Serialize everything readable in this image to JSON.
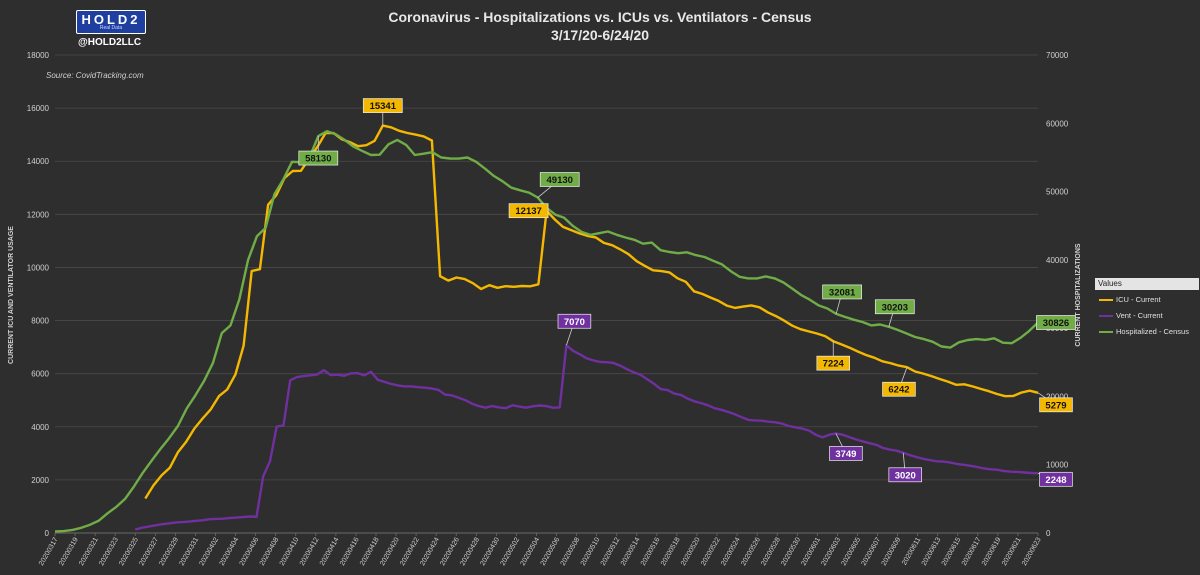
{
  "header": {
    "logo_text": "HOLD2",
    "logo_sub": "Real Data",
    "handle": "@HOLD2LLC",
    "title_line1": "Coronavirus - Hospitalizations vs. ICUs vs. Ventilators - Census",
    "title_line2": "3/17/20-6/24/20",
    "source": "Source: CovidTracking.com"
  },
  "legend": {
    "heading": "Values",
    "items": [
      "ICU - Current",
      "Vent - Current",
      "Hospitalized - Census"
    ]
  },
  "colors": {
    "icu": "#f5b800",
    "vent": "#7030a0",
    "hosp": "#70ad47",
    "background": "#2e2e2e",
    "grid": "#4a4a4a",
    "text": "#d0d0d0"
  },
  "chart_data": {
    "type": "line",
    "title": "Coronavirus - Hospitalizations vs. ICUs vs. Ventilators - Census",
    "subtitle": "3/17/20-6/24/20",
    "ylabel_left": "CURRENT ICU AND VENTILATOR USAGE",
    "ylabel_right": "CURRENT HOSPITALIZATIONS",
    "ylim_left": [
      0,
      18000
    ],
    "ylim_right": [
      0,
      70000
    ],
    "yticks_left": [
      0,
      2000,
      4000,
      6000,
      8000,
      10000,
      12000,
      14000,
      16000,
      18000
    ],
    "yticks_right": [
      0,
      10000,
      20000,
      30000,
      40000,
      50000,
      60000,
      70000
    ],
    "x_tick_labels": [
      "20200317",
      "20200319",
      "20200321",
      "20200323",
      "20200325",
      "20200327",
      "20200329",
      "20200331",
      "20200402",
      "20200404",
      "20200406",
      "20200408",
      "20200410",
      "20200412",
      "20200414",
      "20200416",
      "20200418",
      "20200420",
      "20200422",
      "20200424",
      "20200426",
      "20200428",
      "20200430",
      "20200502",
      "20200504",
      "20200506",
      "20200508",
      "20200510",
      "20200512",
      "20200514",
      "20200516",
      "20200518",
      "20200520",
      "20200522",
      "20200524",
      "20200526",
      "20200528",
      "20200530",
      "20200601",
      "20200603",
      "20200605",
      "20200607",
      "20200609",
      "20200611",
      "20200613",
      "20200615",
      "20200617",
      "20200619",
      "20200621",
      "20200623"
    ],
    "grid": true,
    "legend_position": "right",
    "series": [
      {
        "name": "ICU - Current",
        "axis": "left",
        "start": "20200326",
        "values": [
          1299,
          1792,
          2174,
          2456,
          3046,
          3434,
          3935,
          4311,
          4659,
          5155,
          5405,
          5968,
          7052,
          9865,
          9934,
          12359,
          12724,
          13370,
          13631,
          13641,
          14095,
          14537,
          15059,
          15059,
          14824,
          14717,
          14566,
          14602,
          14768,
          15341,
          15278,
          15147,
          15061,
          15004,
          14935,
          14781,
          9672,
          9506,
          9620,
          9560,
          9407,
          9190,
          9332,
          9232,
          9292,
          9272,
          9302,
          9289,
          9367,
          12137,
          11804,
          11528,
          11408,
          11283,
          11186,
          11132,
          10925,
          10837,
          10678,
          10499,
          10235,
          10058,
          9894,
          9861,
          9812,
          9593,
          9460,
          9103,
          9003,
          8870,
          8741,
          8565,
          8475,
          8524,
          8570,
          8500,
          8310,
          8167,
          7999,
          7808,
          7673,
          7592,
          7512,
          7415,
          7224,
          7103,
          6976,
          6836,
          6704,
          6602,
          6465,
          6394,
          6303,
          6242,
          6081,
          6003,
          5908,
          5800,
          5700,
          5580,
          5600,
          5522,
          5428,
          5338,
          5236,
          5150,
          5161,
          5290,
          5360,
          5279
        ]
      },
      {
        "name": "Vent - Current",
        "axis": "left",
        "start": "20200325",
        "values": [
          130,
          200,
          240,
          290,
          330,
          360,
          400,
          410,
          430,
          460,
          480,
          520,
          530,
          540,
          560,
          580,
          600,
          620,
          610,
          2140,
          2700,
          4010,
          4050,
          5750,
          5870,
          5910,
          5940,
          5970,
          6130,
          5950,
          5960,
          5920,
          6010,
          6020,
          5940,
          6070,
          5770,
          5690,
          5610,
          5560,
          5520,
          5520,
          5490,
          5470,
          5440,
          5390,
          5210,
          5180,
          5090,
          5000,
          4870,
          4780,
          4720,
          4780,
          4730,
          4700,
          4810,
          4760,
          4720,
          4770,
          4800,
          4780,
          4720,
          4730,
          7070,
          6860,
          6730,
          6580,
          6500,
          6440,
          6430,
          6400,
          6300,
          6170,
          6050,
          5960,
          5790,
          5620,
          5420,
          5380,
          5250,
          5200,
          5060,
          4960,
          4890,
          4810,
          4700,
          4640,
          4560,
          4470,
          4360,
          4260,
          4240,
          4230,
          4190,
          4170,
          4120,
          4030,
          3980,
          3930,
          3860,
          3700,
          3600,
          3700,
          3749,
          3700,
          3610,
          3520,
          3450,
          3380,
          3320,
          3200,
          3140,
          3100,
          3020,
          2930,
          2860,
          2790,
          2740,
          2700,
          2690,
          2650,
          2600,
          2570,
          2530,
          2480,
          2430,
          2400,
          2380,
          2330,
          2310,
          2300,
          2280,
          2260,
          2248
        ]
      },
      {
        "name": "Hospitalized - Census",
        "axis": "right",
        "start": "20200317",
        "values": [
          230,
          280,
          460,
          760,
          1210,
          1820,
          2900,
          3840,
          5020,
          6830,
          8810,
          10570,
          12280,
          13880,
          15670,
          18230,
          20170,
          22300,
          24930,
          29270,
          30400,
          34200,
          39990,
          43450,
          44680,
          49610,
          51760,
          54360,
          54300,
          55020,
          58130,
          58840,
          58370,
          57560,
          56590,
          55950,
          55350,
          55400,
          56920,
          57560,
          56830,
          55350,
          55540,
          55770,
          54990,
          54850,
          54830,
          54990,
          54350,
          53350,
          52290,
          51510,
          50570,
          50180,
          49850,
          49130,
          47620,
          46630,
          46160,
          44980,
          44090,
          43650,
          43900,
          44160,
          43670,
          43270,
          42940,
          42360,
          42520,
          41420,
          41150,
          40980,
          41100,
          40690,
          40420,
          39860,
          39340,
          38340,
          37520,
          37290,
          37290,
          37580,
          37280,
          36690,
          35790,
          34870,
          34160,
          33330,
          32870,
          32081,
          31640,
          31240,
          30900,
          30400,
          30530,
          30203,
          29740,
          29230,
          28710,
          28390,
          28000,
          27310,
          27150,
          27930,
          28260,
          28390,
          28280,
          28510,
          27870,
          27800,
          28570,
          29600,
          30826
        ]
      }
    ],
    "annotations": [
      {
        "series": "ICU - Current",
        "value": 15341
      },
      {
        "series": "ICU - Current",
        "value": 12137
      },
      {
        "series": "ICU - Current",
        "value": 7224
      },
      {
        "series": "ICU - Current",
        "value": 6242
      },
      {
        "series": "ICU - Current",
        "value": 5279
      },
      {
        "series": "Vent - Current",
        "value": 7070
      },
      {
        "series": "Vent - Current",
        "value": 3749
      },
      {
        "series": "Vent - Current",
        "value": 3020
      },
      {
        "series": "Vent - Current",
        "value": 2248
      },
      {
        "series": "Hospitalized - Census",
        "value": 58130
      },
      {
        "series": "Hospitalized - Census",
        "value": 49130
      },
      {
        "series": "Hospitalized - Census",
        "value": 32081
      },
      {
        "series": "Hospitalized - Census",
        "value": 30203
      },
      {
        "series": "Hospitalized - Census",
        "value": 30826
      }
    ]
  }
}
